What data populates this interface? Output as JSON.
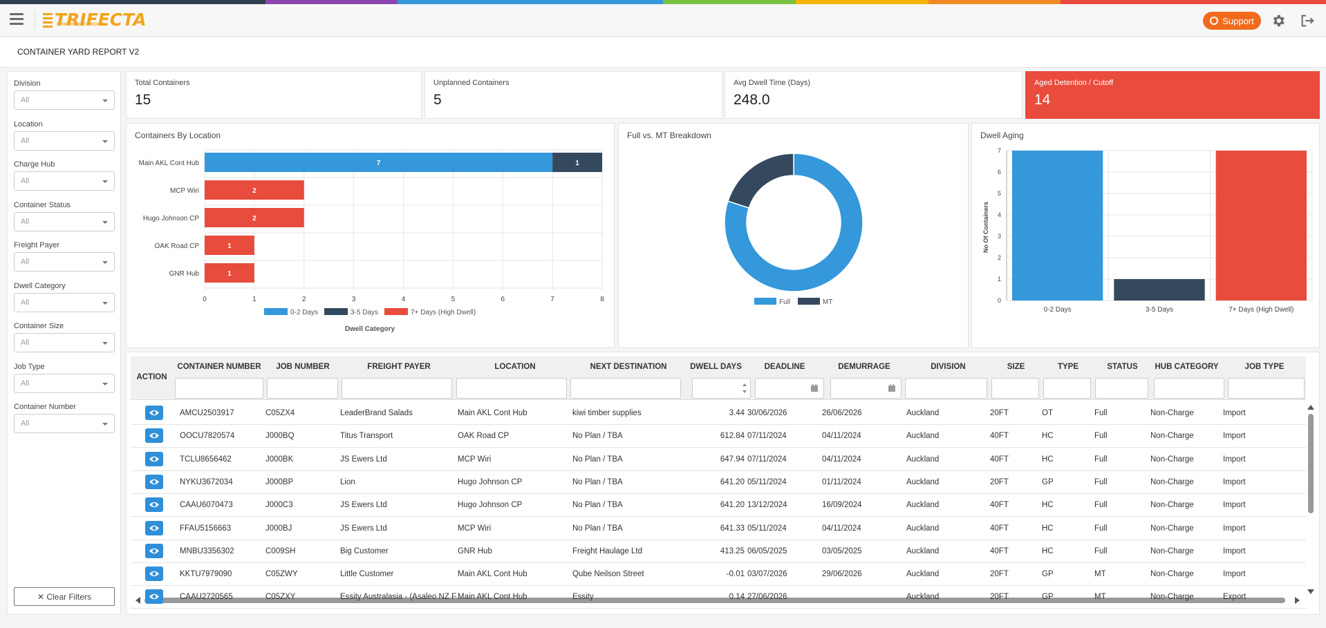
{
  "header": {
    "logo_text": "TRIFECTA",
    "logo_sub": "POWERED BY MOGO",
    "support_label": "Support",
    "rainbow_colors": [
      "#2f3e50",
      "#2f3e50",
      "#8e44ad",
      "#3498db",
      "#3498db",
      "#7ac142",
      "#f5b400",
      "#f08a24",
      "#e94b3c",
      "#e94b3c"
    ]
  },
  "page": {
    "title": "CONTAINER YARD REPORT V2"
  },
  "filters": [
    {
      "label": "Division",
      "value": "All"
    },
    {
      "label": "Location",
      "value": "All"
    },
    {
      "label": "Charge Hub",
      "value": "All"
    },
    {
      "label": "Container Status",
      "value": "All"
    },
    {
      "label": "Freight Payer",
      "value": "All"
    },
    {
      "label": "Dwell Category",
      "value": "All"
    },
    {
      "label": "Container Size",
      "value": "All"
    },
    {
      "label": "Job Type",
      "value": "All"
    },
    {
      "label": "Container Number",
      "value": "All"
    }
  ],
  "clear_filters_label": "✕ Clear Filters",
  "kpis": [
    {
      "label": "Total Containers",
      "value": "15"
    },
    {
      "label": "Unplanned Containers",
      "value": "5"
    },
    {
      "label": "Avg Dwell Time (Days)",
      "value": "248.0"
    },
    {
      "label": "Aged Detention / Cutoff",
      "value": "14"
    }
  ],
  "colors": {
    "blue": "#3498db",
    "dark": "#34495e",
    "red": "#e74c3c",
    "accent": "#f26b1d"
  },
  "panels": {
    "location_title": "Containers By Location",
    "breakdown_title": "Full vs. MT Breakdown",
    "aging_title": "Dwell Aging"
  },
  "chart_data": [
    {
      "type": "bar",
      "orientation": "horizontal",
      "stacked": true,
      "title": "Containers By Location",
      "categories": [
        "Main AKL Cont Hub",
        "MCP Wiri",
        "Hugo Johnson CP",
        "OAK Road CP",
        "GNR Hub"
      ],
      "series": [
        {
          "name": "0-2 Days",
          "color": "#3498db",
          "values": [
            7,
            0,
            0,
            0,
            0
          ]
        },
        {
          "name": "3-5 Days",
          "color": "#34495e",
          "values": [
            1,
            0,
            0,
            0,
            0
          ]
        },
        {
          "name": "7+ Days (High Dwell)",
          "color": "#e74c3c",
          "values": [
            0,
            2,
            2,
            1,
            1
          ]
        }
      ],
      "xlim": [
        0,
        8
      ],
      "xticks": [
        "0",
        "1",
        "2",
        "3",
        "4",
        "5",
        "6",
        "7",
        "8"
      ],
      "legend_title": "Dwell Category",
      "legend_position": "bottom",
      "grid": true
    },
    {
      "type": "pie",
      "donut": true,
      "title": "Full vs. MT Breakdown",
      "series": [
        {
          "name": "Full",
          "color": "#3498db",
          "value": 12
        },
        {
          "name": "MT",
          "color": "#34495e",
          "value": 3
        }
      ],
      "legend_position": "bottom"
    },
    {
      "type": "bar",
      "title": "Dwell Aging",
      "categories": [
        "0-2 Days",
        "3-5 Days",
        "7+ Days (High Dwell)"
      ],
      "values": [
        7,
        1,
        7
      ],
      "colors": [
        "#3498db",
        "#34495e",
        "#e74c3c"
      ],
      "ylabel": "No Of Containers",
      "ylim": [
        0,
        7
      ],
      "yticks": [
        "0",
        "1",
        "2",
        "3",
        "4",
        "5",
        "6",
        "7"
      ],
      "grid": true
    }
  ],
  "table": {
    "columns": [
      "ACTION",
      "CONTAINER NUMBER",
      "JOB NUMBER",
      "FREIGHT PAYER",
      "LOCATION",
      "NEXT DESTINATION",
      "DWELL DAYS",
      "DEADLINE",
      "DEMURRAGE",
      "DIVISION",
      "SIZE",
      "TYPE",
      "STATUS",
      "HUB CATEGORY",
      "JOB TYPE"
    ],
    "rows": [
      [
        "AMCU2503917",
        "C05ZX4",
        "LeaderBrand Salads",
        "Main AKL Cont Hub",
        "kiwi timber supplies",
        "3.44",
        "30/06/2026",
        "26/06/2026",
        "Auckland",
        "20FT",
        "OT",
        "Full",
        "Non-Charge",
        "Import"
      ],
      [
        "OOCU7820574",
        "J000BQ",
        "Titus Transport",
        "OAK Road CP",
        "No Plan / TBA",
        "612.84",
        "07/11/2024",
        "04/11/2024",
        "Auckland",
        "40FT",
        "HC",
        "Full",
        "Non-Charge",
        "Import"
      ],
      [
        "TCLU8656462",
        "J000BK",
        "JS Ewers Ltd",
        "MCP Wiri",
        "No Plan / TBA",
        "647.94",
        "07/11/2024",
        "04/11/2024",
        "Auckland",
        "40FT",
        "HC",
        "Full",
        "Non-Charge",
        "Import"
      ],
      [
        "NYKU3672034",
        "J000BP",
        "Lion",
        "Hugo Johnson CP",
        "No Plan / TBA",
        "641.20",
        "05/11/2024",
        "01/11/2024",
        "Auckland",
        "20FT",
        "GP",
        "Full",
        "Non-Charge",
        "Import"
      ],
      [
        "CAAU6070473",
        "J000C3",
        "JS Ewers Ltd",
        "Hugo Johnson CP",
        "No Plan / TBA",
        "641.20",
        "13/12/2024",
        "16/09/2024",
        "Auckland",
        "40FT",
        "HC",
        "Full",
        "Non-Charge",
        "Import"
      ],
      [
        "FFAU5156663",
        "J000BJ",
        "JS Ewers Ltd",
        "MCP Wiri",
        "No Plan / TBA",
        "641.33",
        "05/11/2024",
        "04/11/2024",
        "Auckland",
        "40FT",
        "HC",
        "Full",
        "Non-Charge",
        "Import"
      ],
      [
        "MNBU3356302",
        "C009SH",
        "Big Customer",
        "GNR Hub",
        "Freight Haulage Ltd",
        "413.25",
        "06/05/2025",
        "03/05/2025",
        "Auckland",
        "40FT",
        "HC",
        "Full",
        "Non-Charge",
        "Import"
      ],
      [
        "KKTU7979090",
        "C05ZWY",
        "Little Customer",
        "Main AKL Cont Hub",
        "Qube Neilson Street",
        "-0.01",
        "03/07/2026",
        "29/06/2026",
        "Auckland",
        "20FT",
        "GP",
        "MT",
        "Non-Charge",
        "Import"
      ],
      [
        "CAAU2720565",
        "C05ZXY",
        "Essity Australasia - (Asaleo NZ Fo",
        "Main AKL Cont Hub",
        "Essity",
        "0.14",
        "27/06/2026",
        "",
        "Auckland",
        "20FT",
        "GP",
        "MT",
        "Non-Charge",
        "Export"
      ]
    ]
  }
}
